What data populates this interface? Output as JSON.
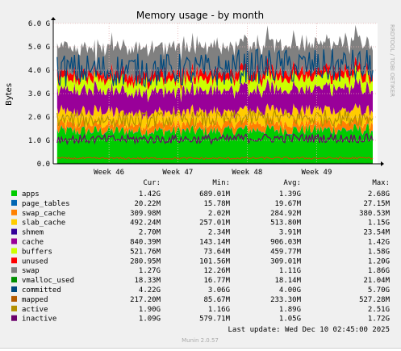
{
  "chart_data": {
    "type": "area",
    "title": "Memory usage - by month",
    "ylabel": "Bytes",
    "y_unit": "bytes",
    "ylim": [
      0,
      6000000000
    ],
    "y_ticks": [
      {
        "value": 0,
        "label": "0.0"
      },
      {
        "value": 1000000000,
        "label": "1.0 G"
      },
      {
        "value": 2000000000,
        "label": "2.0 G"
      },
      {
        "value": 3000000000,
        "label": "3.0 G"
      },
      {
        "value": 4000000000,
        "label": "4.0 G"
      },
      {
        "value": 5000000000,
        "label": "5.0 G"
      },
      {
        "value": 6000000000,
        "label": "6.0 G"
      }
    ],
    "x_ticks": [
      {
        "label": "Week 46",
        "pos": 0.172
      },
      {
        "label": "Week 47",
        "pos": 0.384
      },
      {
        "label": "Week 48",
        "pos": 0.598
      },
      {
        "label": "Week 49",
        "pos": 0.812
      }
    ],
    "grid": true,
    "side_text": "RRDTOOL / TOBI OETIKER",
    "legend_headers": {
      "cur": "Cur:",
      "min": "Min:",
      "avg": "Avg:",
      "max": "Max:"
    },
    "series": [
      {
        "name": "apps",
        "color": "#00cc00",
        "type": "area",
        "cur": "1.42G",
        "min": "689.01M",
        "avg": "1.39G",
        "max": "2.68G"
      },
      {
        "name": "page_tables",
        "color": "#0066b3",
        "type": "area",
        "cur": "20.22M",
        "min": "15.78M",
        "avg": "19.67M",
        "max": "27.15M"
      },
      {
        "name": "swap_cache",
        "color": "#ff8000",
        "type": "area",
        "cur": "309.98M",
        "min": "2.02M",
        "avg": "284.92M",
        "max": "380.53M"
      },
      {
        "name": "slab_cache",
        "color": "#ffcc00",
        "type": "area",
        "cur": "492.24M",
        "min": "257.01M",
        "avg": "513.80M",
        "max": "1.15G"
      },
      {
        "name": "shmem",
        "color": "#330099",
        "type": "area",
        "cur": "2.70M",
        "min": "2.34M",
        "avg": "3.91M",
        "max": "23.54M"
      },
      {
        "name": "cache",
        "color": "#990099",
        "type": "area",
        "cur": "840.39M",
        "min": "143.14M",
        "avg": "906.03M",
        "max": "1.42G"
      },
      {
        "name": "buffers",
        "color": "#ccff00",
        "type": "area",
        "cur": "521.76M",
        "min": "73.64M",
        "avg": "459.77M",
        "max": "1.58G"
      },
      {
        "name": "unused",
        "color": "#ff0000",
        "type": "area",
        "cur": "280.95M",
        "min": "101.56M",
        "avg": "309.01M",
        "max": "1.20G"
      },
      {
        "name": "swap",
        "color": "#808080",
        "type": "area",
        "cur": "1.27G",
        "min": "12.26M",
        "avg": "1.11G",
        "max": "1.86G"
      },
      {
        "name": "vmalloc_used",
        "color": "#008f00",
        "type": "line",
        "cur": "18.33M",
        "min": "16.77M",
        "avg": "18.14M",
        "max": "21.04M"
      },
      {
        "name": "committed",
        "color": "#00487d",
        "type": "line",
        "cur": "4.22G",
        "min": "3.06G",
        "avg": "4.00G",
        "max": "5.70G"
      },
      {
        "name": "mapped",
        "color": "#b35a00",
        "type": "line",
        "cur": "217.20M",
        "min": "85.67M",
        "avg": "233.30M",
        "max": "527.28M"
      },
      {
        "name": "active",
        "color": "#b38f00",
        "type": "line",
        "cur": "1.90G",
        "min": "1.16G",
        "avg": "1.89G",
        "max": "2.51G"
      },
      {
        "name": "inactive",
        "color": "#6b006b",
        "type": "line",
        "cur": "1.09G",
        "min": "579.71M",
        "avg": "1.05G",
        "max": "1.72G"
      }
    ],
    "last_update": "Last update: Wed Dec 10 02:45:00 2025",
    "footer": "Munin 2.0.57"
  }
}
